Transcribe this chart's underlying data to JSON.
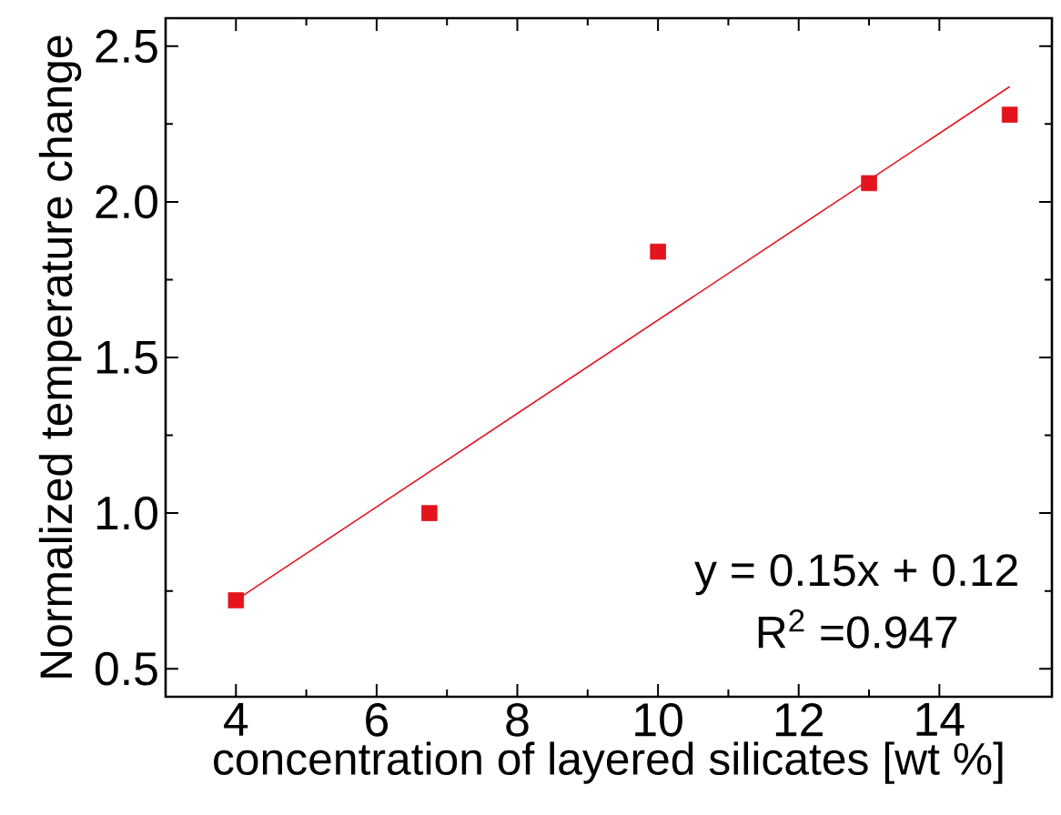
{
  "chart_data": {
    "type": "scatter",
    "xlabel": "concentration of layered silicates [wt %]",
    "ylabel": "Normalized temperature change",
    "xlim": [
      3,
      15.6
    ],
    "ylim": [
      0.41,
      2.59
    ],
    "xticks": [
      4,
      6,
      8,
      10,
      12,
      14
    ],
    "yticks": [
      0.5,
      {
        "value": 1,
        "label": "1.0"
      },
      1.5,
      {
        "value": 2,
        "label": "2.0"
      },
      2.5
    ],
    "series": [
      {
        "type": "scatter",
        "color": "#e3141e",
        "marker": "square",
        "x": [
          4,
          6.75,
          10,
          13,
          15
        ],
        "values": [
          0.72,
          1.0,
          1.84,
          2.06,
          2.28
        ]
      },
      {
        "type": "line",
        "color": "#e3141e",
        "marker": "none",
        "line_style": "solid",
        "x": [
          4,
          15
        ],
        "values": [
          0.72,
          2.37
        ]
      }
    ],
    "annotations": [
      "y = 0.15x + 0.12",
      "R$^{2}$ =0.947"
    ]
  }
}
